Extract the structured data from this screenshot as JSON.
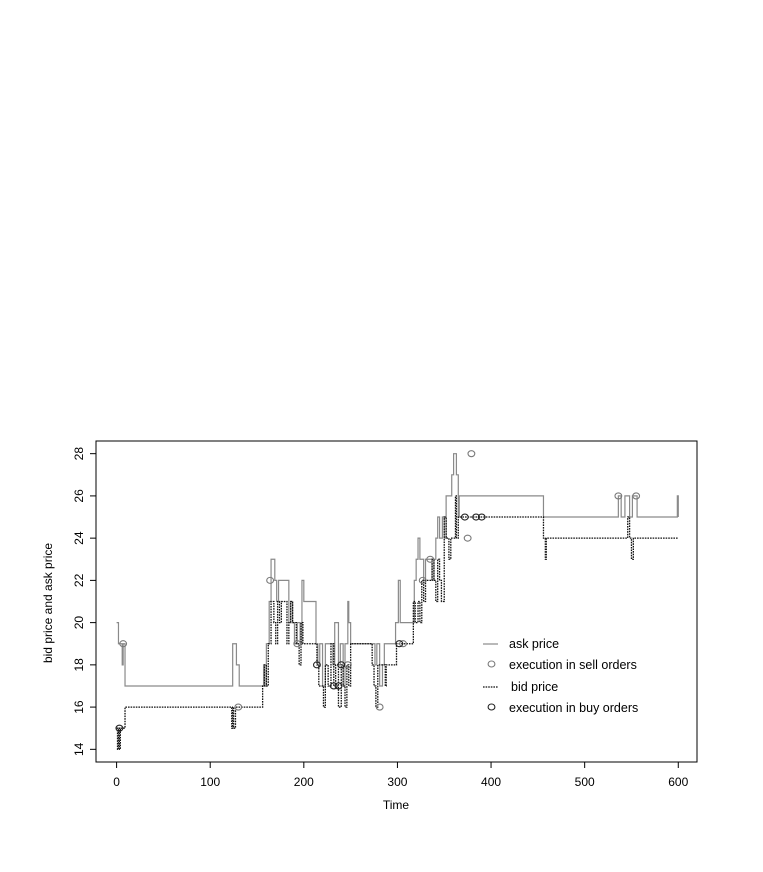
{
  "chart_data": {
    "type": "line",
    "title": "",
    "xlabel": "Time",
    "ylabel": "bid price and ask price",
    "xlim": [
      -22,
      620
    ],
    "ylim": [
      13.4,
      28.6
    ],
    "xticks": [
      0,
      100,
      200,
      300,
      400,
      500,
      600
    ],
    "yticks": [
      14,
      16,
      18,
      20,
      22,
      24,
      26,
      28
    ],
    "grid": false,
    "legend_position": "right",
    "colors": {
      "ask": "#8a8a8a",
      "bid": "#111111",
      "sell_marker": "#7a7a7a",
      "buy_marker": "#222222"
    },
    "series": [
      {
        "name": "ask price",
        "style": "solid",
        "points": [
          [
            0,
            20
          ],
          [
            2,
            19
          ],
          [
            5,
            19
          ],
          [
            6,
            18
          ],
          [
            7,
            19
          ],
          [
            9,
            17
          ],
          [
            122,
            17
          ],
          [
            124,
            19
          ],
          [
            127,
            19
          ],
          [
            128,
            18
          ],
          [
            130,
            18
          ],
          [
            131,
            17
          ],
          [
            155,
            17
          ],
          [
            157,
            18
          ],
          [
            158,
            17
          ],
          [
            160,
            19
          ],
          [
            163,
            21
          ],
          [
            165,
            23
          ],
          [
            168,
            23
          ],
          [
            169,
            22
          ],
          [
            171,
            21
          ],
          [
            173,
            22
          ],
          [
            182,
            22
          ],
          [
            184,
            20
          ],
          [
            186,
            21
          ],
          [
            188,
            20
          ],
          [
            190,
            19
          ],
          [
            193,
            20
          ],
          [
            196,
            19
          ],
          [
            198,
            22
          ],
          [
            200,
            21
          ],
          [
            212,
            21
          ],
          [
            213,
            19
          ],
          [
            215,
            18
          ],
          [
            217,
            19
          ],
          [
            220,
            17
          ],
          [
            223,
            19
          ],
          [
            228,
            19
          ],
          [
            231,
            18
          ],
          [
            233,
            20
          ],
          [
            236,
            20
          ],
          [
            237,
            18
          ],
          [
            239,
            19
          ],
          [
            242,
            17
          ],
          [
            244,
            19
          ],
          [
            247,
            21
          ],
          [
            248,
            20
          ],
          [
            250,
            19
          ],
          [
            274,
            19
          ],
          [
            276,
            18
          ],
          [
            278,
            19
          ],
          [
            281,
            17
          ],
          [
            283,
            17
          ],
          [
            284,
            18
          ],
          [
            286,
            19
          ],
          [
            297,
            19
          ],
          [
            298,
            20
          ],
          [
            301,
            22
          ],
          [
            303,
            20
          ],
          [
            315,
            20
          ],
          [
            318,
            22
          ],
          [
            320,
            23
          ],
          [
            322,
            24
          ],
          [
            324,
            23
          ],
          [
            328,
            22
          ],
          [
            330,
            23
          ],
          [
            335,
            23
          ],
          [
            337,
            22
          ],
          [
            339,
            23
          ],
          [
            341,
            24
          ],
          [
            343,
            25
          ],
          [
            345,
            24
          ],
          [
            348,
            25
          ],
          [
            350,
            24
          ],
          [
            352,
            26
          ],
          [
            356,
            26
          ],
          [
            358,
            27
          ],
          [
            360,
            28
          ],
          [
            362,
            28
          ],
          [
            363,
            27
          ],
          [
            365,
            25
          ],
          [
            366,
            26
          ],
          [
            455,
            26
          ],
          [
            456,
            25
          ],
          [
            458,
            25
          ],
          [
            535,
            25
          ],
          [
            536,
            26
          ],
          [
            538,
            26
          ],
          [
            539,
            25
          ],
          [
            543,
            26
          ],
          [
            546,
            26
          ],
          [
            548,
            25
          ],
          [
            551,
            26
          ],
          [
            555,
            26
          ],
          [
            556,
            25
          ],
          [
            598,
            25
          ],
          [
            599,
            26
          ],
          [
            600,
            25
          ]
        ]
      },
      {
        "name": "bid price",
        "style": "dotted",
        "points": [
          [
            0,
            15
          ],
          [
            1,
            14
          ],
          [
            2,
            15
          ],
          [
            3,
            14
          ],
          [
            4,
            15
          ],
          [
            8,
            15
          ],
          [
            9,
            16
          ],
          [
            122,
            16
          ],
          [
            123,
            15
          ],
          [
            124,
            16
          ],
          [
            125,
            15
          ],
          [
            127,
            16
          ],
          [
            155,
            16
          ],
          [
            156,
            17
          ],
          [
            158,
            18
          ],
          [
            160,
            17
          ],
          [
            162,
            19
          ],
          [
            165,
            21
          ],
          [
            168,
            20
          ],
          [
            170,
            19
          ],
          [
            172,
            21
          ],
          [
            174,
            20
          ],
          [
            176,
            21
          ],
          [
            180,
            21
          ],
          [
            182,
            19
          ],
          [
            184,
            20
          ],
          [
            186,
            21
          ],
          [
            188,
            20
          ],
          [
            192,
            19
          ],
          [
            195,
            18
          ],
          [
            197,
            20
          ],
          [
            199,
            19
          ],
          [
            212,
            19
          ],
          [
            214,
            18
          ],
          [
            216,
            17
          ],
          [
            219,
            17
          ],
          [
            221,
            16
          ],
          [
            223,
            18
          ],
          [
            226,
            17
          ],
          [
            229,
            19
          ],
          [
            232,
            17
          ],
          [
            234,
            18
          ],
          [
            237,
            16
          ],
          [
            240,
            18
          ],
          [
            242,
            17
          ],
          [
            244,
            16
          ],
          [
            246,
            18
          ],
          [
            248,
            17
          ],
          [
            250,
            19
          ],
          [
            272,
            19
          ],
          [
            273,
            18
          ],
          [
            275,
            17
          ],
          [
            277,
            16
          ],
          [
            279,
            18
          ],
          [
            285,
            18
          ],
          [
            287,
            17
          ],
          [
            288,
            18
          ],
          [
            297,
            18
          ],
          [
            299,
            19
          ],
          [
            302,
            19
          ],
          [
            315,
            19
          ],
          [
            317,
            21
          ],
          [
            319,
            20
          ],
          [
            322,
            21
          ],
          [
            324,
            20
          ],
          [
            326,
            22
          ],
          [
            328,
            21
          ],
          [
            330,
            22
          ],
          [
            334,
            22
          ],
          [
            337,
            23
          ],
          [
            339,
            22
          ],
          [
            341,
            21
          ],
          [
            343,
            23
          ],
          [
            345,
            22
          ],
          [
            347,
            21
          ],
          [
            350,
            25
          ],
          [
            352,
            24
          ],
          [
            355,
            23
          ],
          [
            357,
            24
          ],
          [
            360,
            24
          ],
          [
            362,
            26
          ],
          [
            363,
            24
          ],
          [
            365,
            25
          ],
          [
            366,
            25
          ],
          [
            455,
            25
          ],
          [
            456,
            24
          ],
          [
            458,
            23
          ],
          [
            459,
            24
          ],
          [
            545,
            24
          ],
          [
            546,
            25
          ],
          [
            548,
            24
          ],
          [
            550,
            23
          ],
          [
            552,
            24
          ],
          [
            600,
            24
          ]
        ]
      }
    ],
    "annotations": [
      {
        "name": "execution in sell orders",
        "marker": "circle",
        "points": [
          [
            7,
            19
          ],
          [
            130,
            16
          ],
          [
            164,
            22
          ],
          [
            193,
            19
          ],
          [
            247,
            18
          ],
          [
            281,
            16
          ],
          [
            306,
            19
          ],
          [
            327,
            22
          ],
          [
            335,
            23
          ],
          [
            375,
            24
          ],
          [
            379,
            28
          ],
          [
            536,
            26
          ],
          [
            555,
            26
          ]
        ]
      },
      {
        "name": "execution in buy orders",
        "marker": "circle",
        "points": [
          [
            3,
            15
          ],
          [
            214,
            18
          ],
          [
            232,
            17
          ],
          [
            237,
            17
          ],
          [
            240,
            18
          ],
          [
            302,
            19
          ],
          [
            372,
            25
          ],
          [
            384,
            25
          ],
          [
            390,
            25
          ]
        ]
      }
    ],
    "legend": [
      {
        "label": "ask price",
        "kind": "line-solid"
      },
      {
        "label": "execution in sell orders",
        "kind": "marker-gray"
      },
      {
        "label": "bid price",
        "kind": "line-dotted"
      },
      {
        "label": "execution in buy orders",
        "kind": "marker-dark"
      }
    ]
  }
}
